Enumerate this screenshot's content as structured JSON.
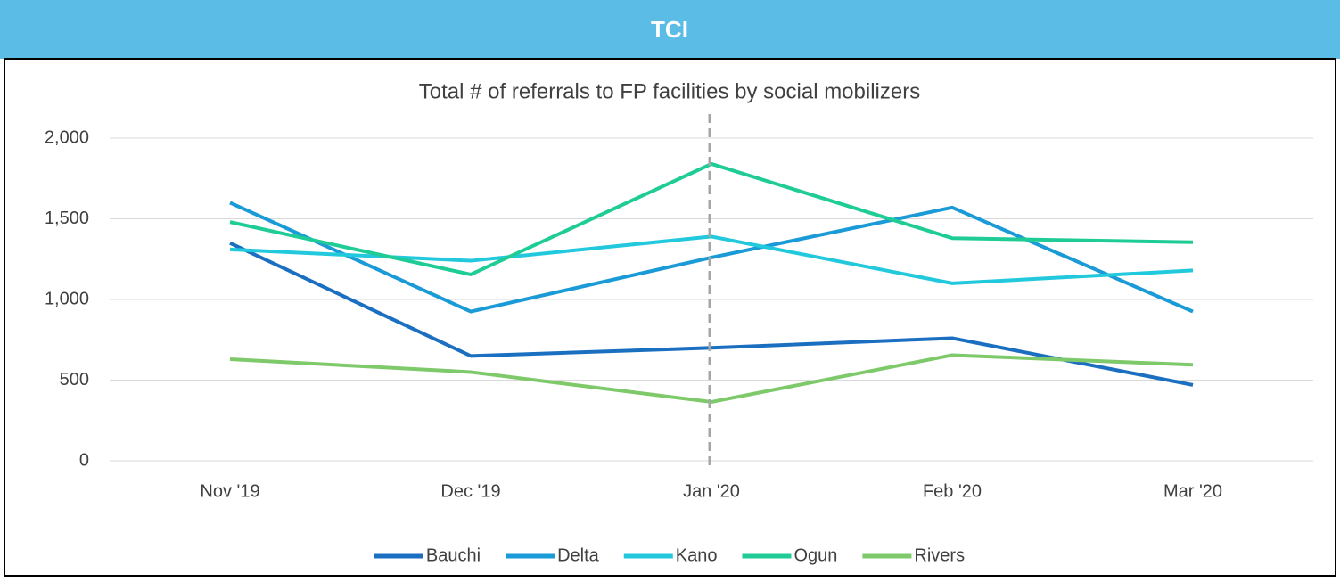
{
  "header": {
    "title": "TCI"
  },
  "chart_data": {
    "type": "line",
    "title": "Total # of referrals to FP facilities by social mobilizers",
    "categories": [
      "Nov '19",
      "Dec '19",
      "Jan '20",
      "Feb '20",
      "Mar '20"
    ],
    "series": [
      {
        "name": "Bauchi",
        "color": "#1b6fc0",
        "values": [
          1350,
          650,
          700,
          760,
          470
        ]
      },
      {
        "name": "Delta",
        "color": "#1a9ad6",
        "values": [
          1600,
          925,
          1260,
          1570,
          925
        ]
      },
      {
        "name": "Kano",
        "color": "#22c8dc",
        "values": [
          1310,
          1240,
          1390,
          1100,
          1180
        ]
      },
      {
        "name": "Ogun",
        "color": "#1fcc96",
        "values": [
          1480,
          1155,
          1840,
          1380,
          1355
        ]
      },
      {
        "name": "Rivers",
        "color": "#7ec96a",
        "values": [
          630,
          550,
          365,
          655,
          595
        ]
      }
    ],
    "ylim": [
      0,
      2000
    ],
    "yticks": [
      0,
      500,
      {
        "value": 1000,
        "label": "1,000"
      },
      {
        "value": 1500,
        "label": "1,500"
      },
      {
        "value": 2000,
        "label": "2,000"
      }
    ],
    "grid": true,
    "legend": "bottom"
  }
}
